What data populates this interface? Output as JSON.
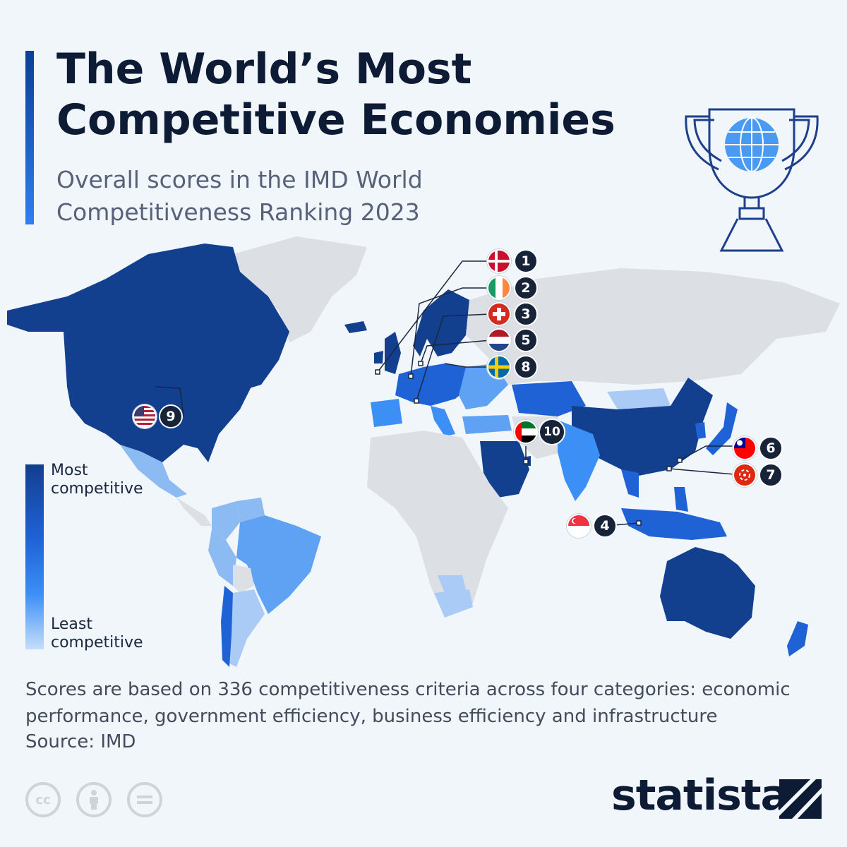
{
  "title": "The World’s Most Competitive Economies",
  "subtitle": "Overall scores in the IMD World Competitiveness Ranking 2023",
  "legend": {
    "high": "Most competitive",
    "low": "Least competitive",
    "colors": [
      "#123f8e",
      "#1f62d6",
      "#3b8ff5",
      "#c6ddfb"
    ]
  },
  "ranks": [
    {
      "rank": "1",
      "country": "Denmark"
    },
    {
      "rank": "2",
      "country": "Ireland"
    },
    {
      "rank": "3",
      "country": "Switzerland"
    },
    {
      "rank": "4",
      "country": "Singapore"
    },
    {
      "rank": "5",
      "country": "Netherlands"
    },
    {
      "rank": "6",
      "country": "Taiwan"
    },
    {
      "rank": "7",
      "country": "Hong Kong"
    },
    {
      "rank": "8",
      "country": "Sweden"
    },
    {
      "rank": "9",
      "country": "United States"
    },
    {
      "rank": "10",
      "country": "United Arab Emirates"
    }
  ],
  "footnote": "Scores are based on 336 competitiveness criteria across four categories: economic performance, government efficiency, business efficiency and infrastructure",
  "source": "Source: IMD",
  "license_icons": [
    "cc",
    "by",
    "nd"
  ],
  "brand": "statista",
  "colors": {
    "background": "#f1f6fb",
    "title": "#0e1b35",
    "no_data": "#dcdfe3",
    "badge": "#172338"
  }
}
